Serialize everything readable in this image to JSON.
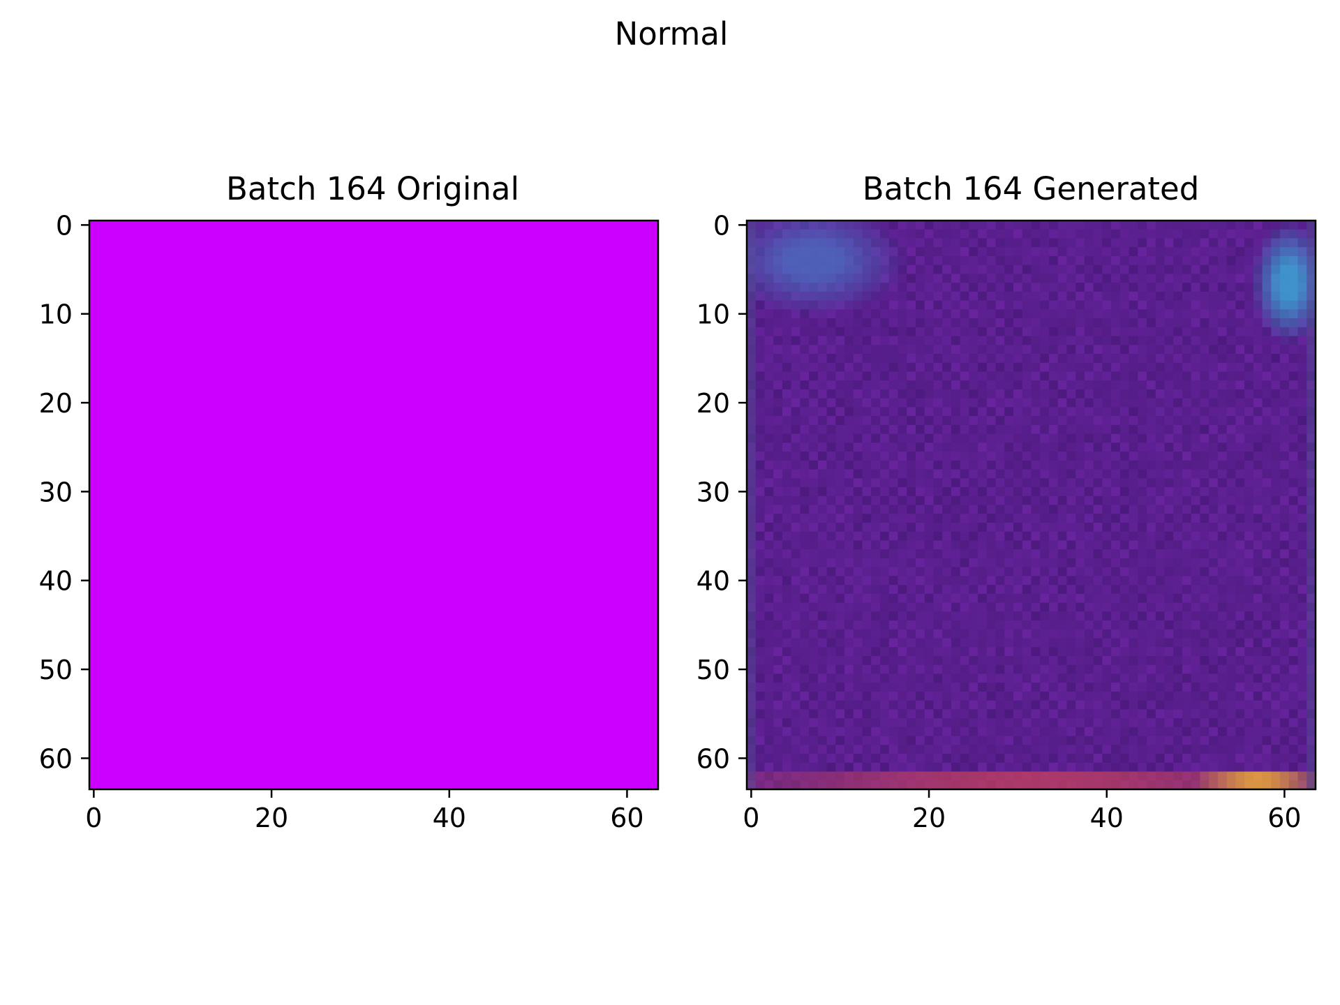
{
  "figure": {
    "suptitle": "Normal"
  },
  "chart_data": [
    {
      "type": "heatmap",
      "title": "Batch 164 Original",
      "image_size": [
        64,
        64
      ],
      "xlim": [
        -0.5,
        63.5
      ],
      "ylim": [
        63.5,
        -0.5
      ],
      "xticks": [
        0,
        20,
        40,
        60
      ],
      "yticks": [
        0,
        10,
        20,
        30,
        40,
        50,
        60
      ],
      "grid": false,
      "fill_color": "#cc00ff",
      "description_values": "uniform magenta image"
    },
    {
      "type": "heatmap",
      "title": "Batch 164 Generated",
      "image_size": [
        64,
        64
      ],
      "xlim": [
        -0.5,
        63.5
      ],
      "ylim": [
        63.5,
        -0.5
      ],
      "xticks": [
        0,
        20,
        40,
        60
      ],
      "yticks": [
        0,
        10,
        20,
        30,
        40,
        50,
        60
      ],
      "grid": false,
      "base_color": "#5a1f8e",
      "regions": [
        {
          "name": "top-right cyan blob",
          "x": [
            58,
            63
          ],
          "y": [
            2,
            11
          ],
          "color": "#3aa6d6"
        },
        {
          "name": "top-left blue haze",
          "x": [
            0,
            14
          ],
          "y": [
            0,
            8
          ],
          "color": "#4d6bc0"
        },
        {
          "name": "bottom edge warm strip",
          "x": [
            0,
            63
          ],
          "y": [
            62,
            63
          ],
          "color": "#c2405e"
        },
        {
          "name": "bottom-right yellow patch",
          "x": [
            52,
            62
          ],
          "y": [
            62,
            63
          ],
          "color": "#f5b531"
        }
      ]
    }
  ]
}
